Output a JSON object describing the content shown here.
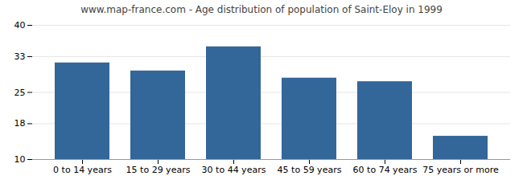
{
  "chart_data": {
    "type": "bar",
    "title": "www.map-france.com - Age distribution of population of Saint-Eloy in 1999",
    "categories": [
      "0 to 14 years",
      "15 to 29 years",
      "30 to 44 years",
      "45 to 59 years",
      "60 to 74 years",
      "75 years or more"
    ],
    "values": [
      31.6,
      29.8,
      35.2,
      28.2,
      27.4,
      15.2
    ],
    "color": "#336699",
    "ylim": [
      10,
      40
    ],
    "yticks": [
      10,
      18,
      25,
      33,
      40
    ],
    "grid": true
  }
}
